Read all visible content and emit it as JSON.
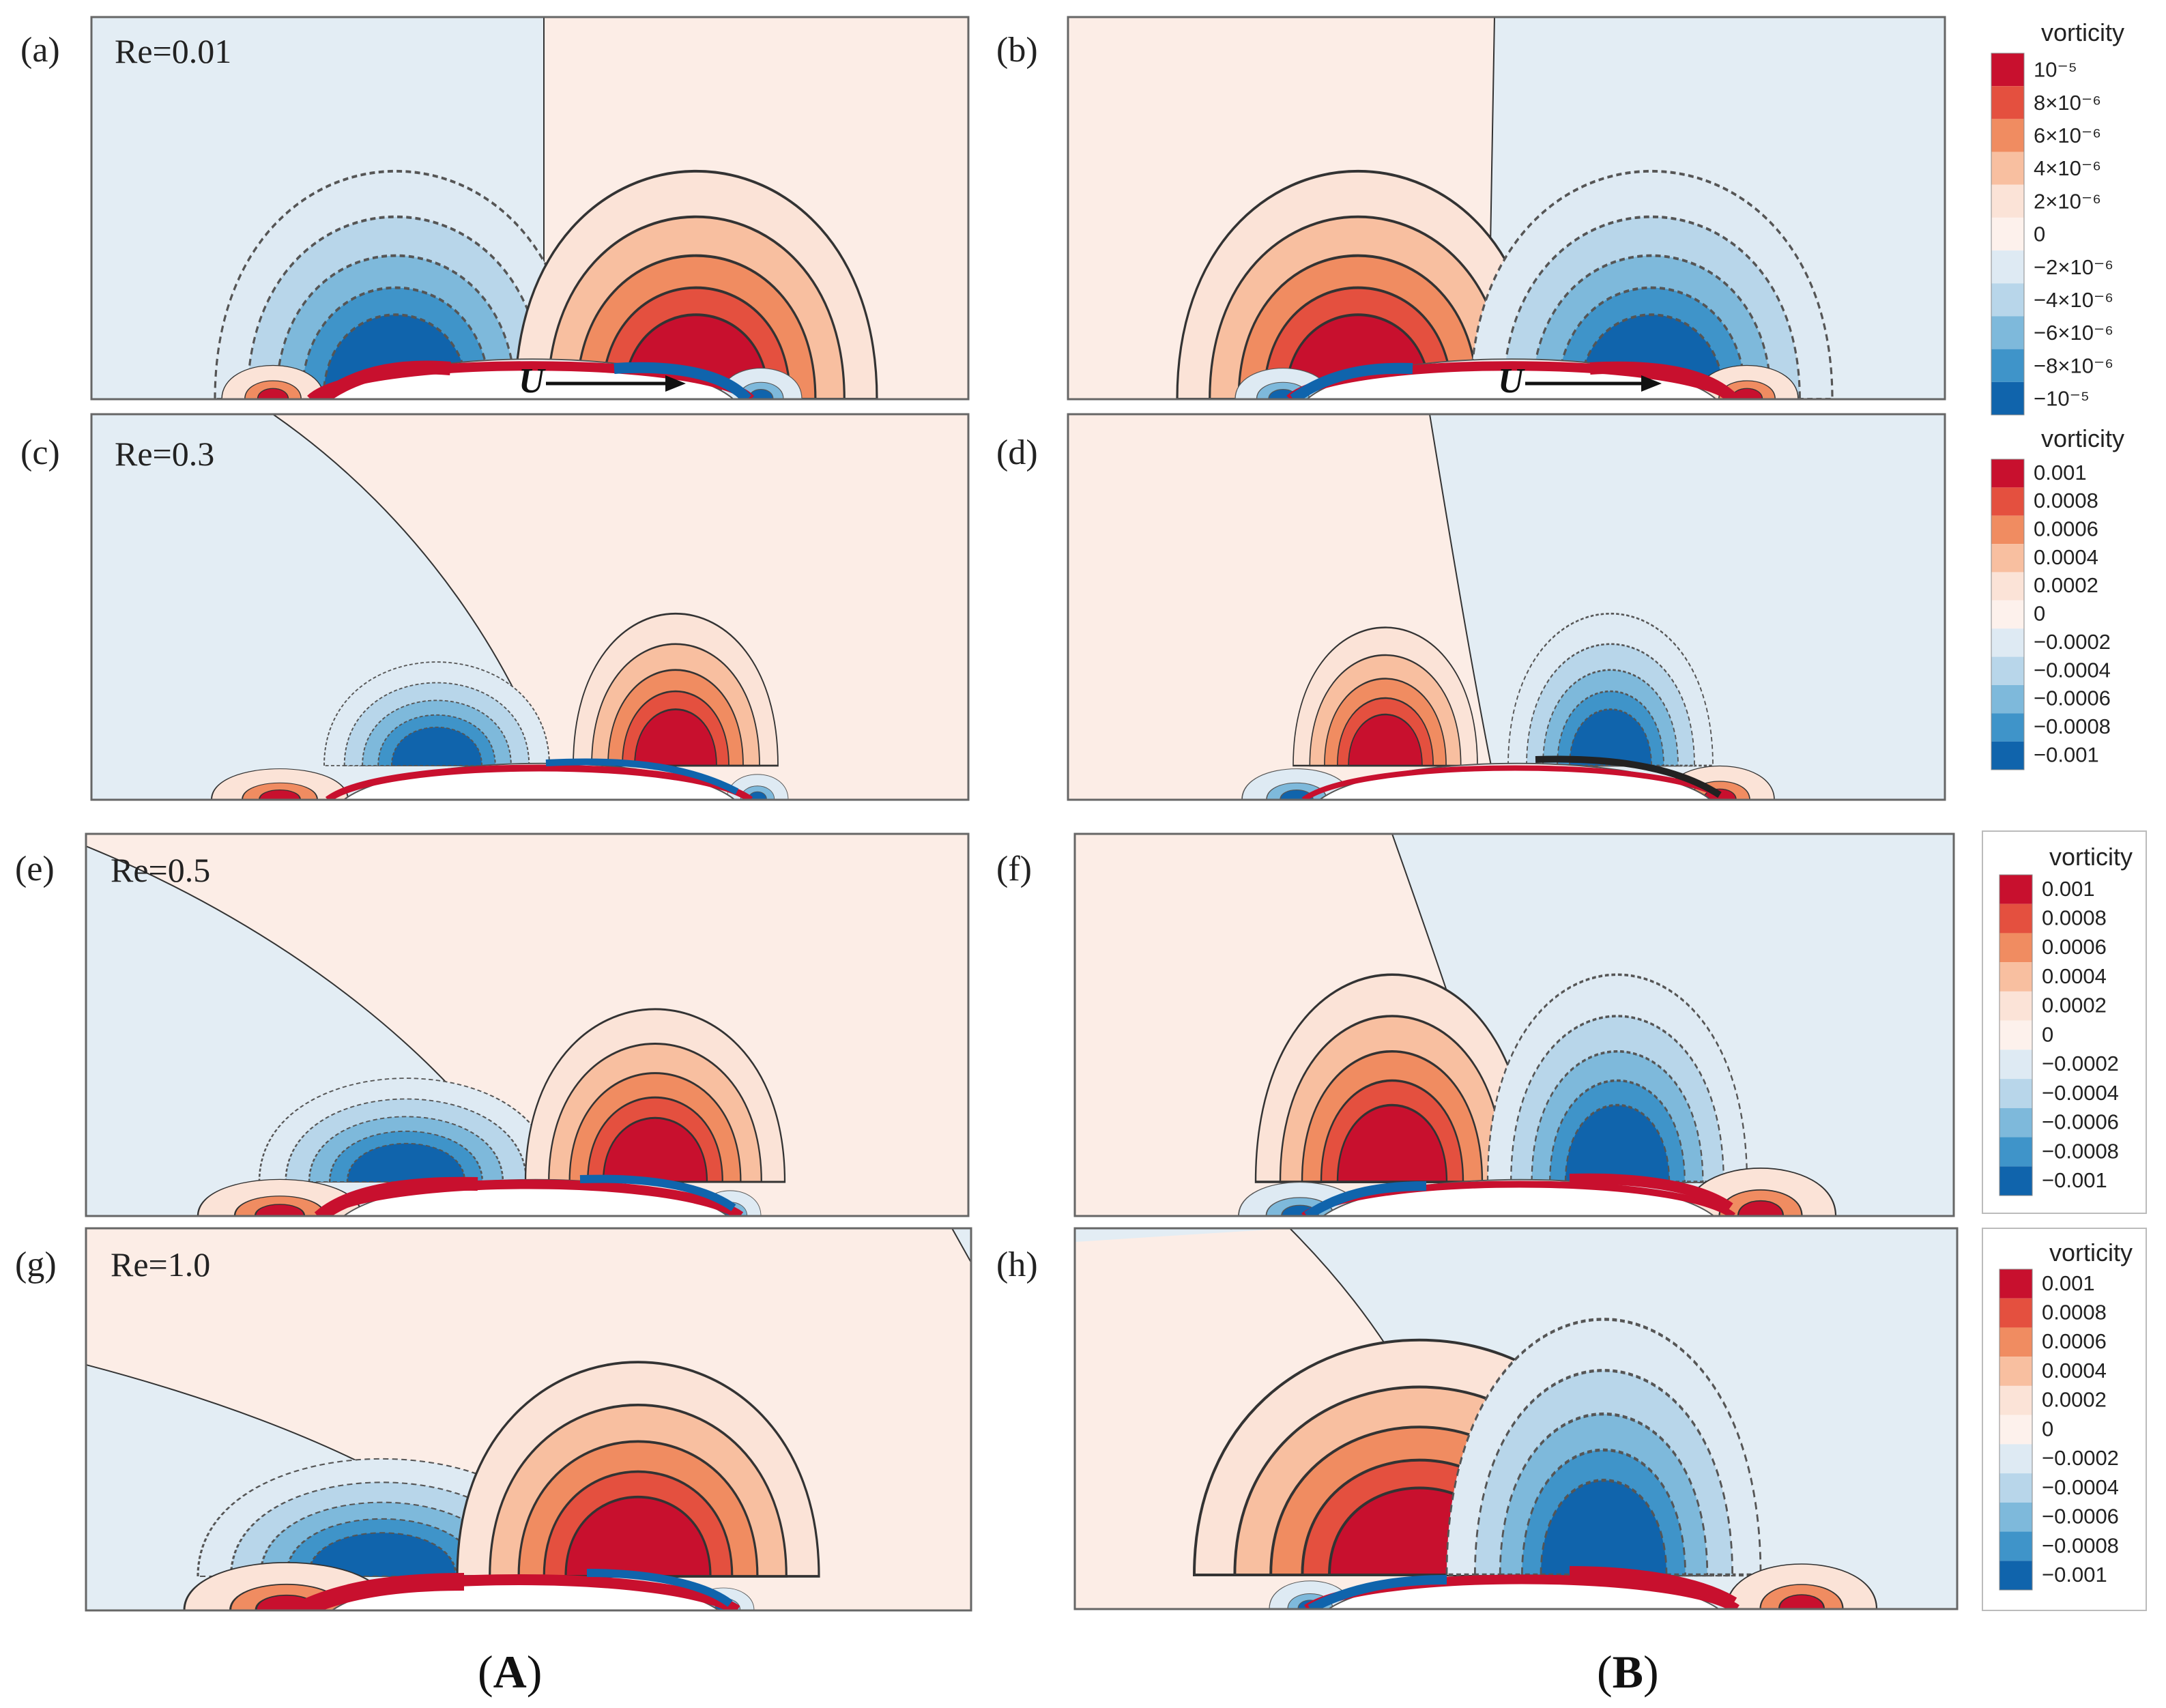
{
  "figure": {
    "panels": [
      {
        "id": "a",
        "label": "(a)",
        "re": "Re=0.01"
      },
      {
        "id": "b",
        "label": "(b)",
        "re": ""
      },
      {
        "id": "c",
        "label": "(c)",
        "re": "Re=0.3"
      },
      {
        "id": "d",
        "label": "(d)",
        "re": ""
      },
      {
        "id": "e",
        "label": "(e)",
        "re": "Re=0.5"
      },
      {
        "id": "f",
        "label": "(f)",
        "re": ""
      },
      {
        "id": "g",
        "label": "(g)",
        "re": "Re=1.0"
      },
      {
        "id": "h",
        "label": "(h)",
        "re": ""
      }
    ],
    "velocity_label": "U",
    "colorbars": [
      {
        "title": "vorticity",
        "ticks": [
          "10⁻⁵",
          "8×10⁻⁶",
          "6×10⁻⁶",
          "4×10⁻⁶",
          "2×10⁻⁶",
          "0",
          "−2×10⁻⁶",
          "−4×10⁻⁶",
          "−6×10⁻⁶",
          "−8×10⁻⁶",
          "−10⁻⁵"
        ]
      },
      {
        "title": "vorticity",
        "ticks": [
          "0.001",
          "0.0008",
          "0.0006",
          "0.0004",
          "0.0002",
          "0",
          "−0.0002",
          "−0.0004",
          "−0.0006",
          "−0.0008",
          "−0.001"
        ]
      },
      {
        "title": "vorticity",
        "ticks": [
          "0.001",
          "0.0008",
          "0.0006",
          "0.0004",
          "0.0002",
          "0",
          "−0.0002",
          "−0.0004",
          "−0.0006",
          "−0.0008",
          "−0.001"
        ]
      },
      {
        "title": "vorticity",
        "ticks": [
          "0.001",
          "0.0008",
          "0.0006",
          "0.0004",
          "0.0002",
          "0",
          "−0.0002",
          "−0.0004",
          "−0.0006",
          "−0.0008",
          "−0.001"
        ]
      }
    ],
    "colors": {
      "levels": [
        "#c8102e",
        "#e4503f",
        "#f08c61",
        "#f8bfa0",
        "#fbe3d7",
        "#fdf1ec",
        "#deeaf3",
        "#b8d6ea",
        "#7eb9db",
        "#3f94c9",
        "#1064ac"
      ],
      "pos_bg": "#fcede6",
      "neg_bg": "#e3edf4",
      "contour_line": "#333333"
    },
    "column_labels": {
      "left_open": "(",
      "left": "A",
      "left_close": ")",
      "right_open": "(",
      "right": "B",
      "right_close": ")"
    }
  }
}
